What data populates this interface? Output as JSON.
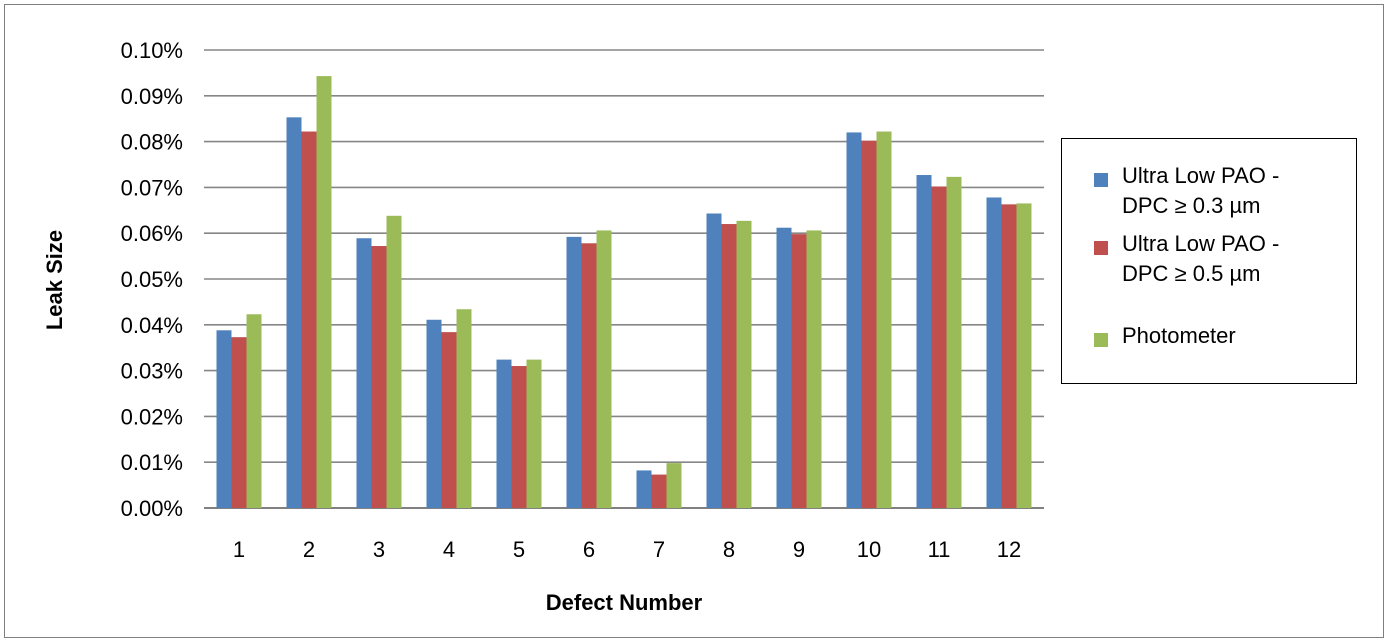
{
  "chart_data": {
    "type": "bar",
    "title": "",
    "xlabel": "Defect Number",
    "ylabel": "Leak Size",
    "categories": [
      "1",
      "2",
      "3",
      "4",
      "5",
      "6",
      "7",
      "8",
      "9",
      "10",
      "11",
      "12"
    ],
    "ylim": [
      0,
      0.1
    ],
    "yticks": [
      "0.00%",
      "0.01%",
      "0.02%",
      "0.03%",
      "0.04%",
      "0.05%",
      "0.06%",
      "0.07%",
      "0.08%",
      "0.09%",
      "0.10%"
    ],
    "grid": true,
    "legend_position": "right",
    "series": [
      {
        "name": "Ultra Low PAO - DPC ≥ 0.3 µm",
        "name_lines": [
          "Ultra Low PAO -",
          "DPC ≥ 0.3 µm"
        ],
        "color": "#4f81bd",
        "values": [
          0.0388,
          0.0853,
          0.0589,
          0.0411,
          0.0324,
          0.0592,
          0.0082,
          0.0643,
          0.0612,
          0.082,
          0.0727,
          0.0678
        ]
      },
      {
        "name": "Ultra Low PAO - DPC ≥ 0.5 µm",
        "name_lines": [
          "Ultra Low PAO -",
          "DPC ≥ 0.5 µm"
        ],
        "color": "#c0504d",
        "values": [
          0.0373,
          0.0822,
          0.0572,
          0.0384,
          0.031,
          0.0578,
          0.0073,
          0.062,
          0.0598,
          0.0802,
          0.0702,
          0.0663
        ]
      },
      {
        "name": "Photometer",
        "name_lines": [
          "Photometer"
        ],
        "color": "#9bbb59",
        "values": [
          0.0423,
          0.0943,
          0.0638,
          0.0434,
          0.0324,
          0.0606,
          0.0098,
          0.0627,
          0.0606,
          0.0822,
          0.0723,
          0.0665
        ]
      }
    ]
  }
}
